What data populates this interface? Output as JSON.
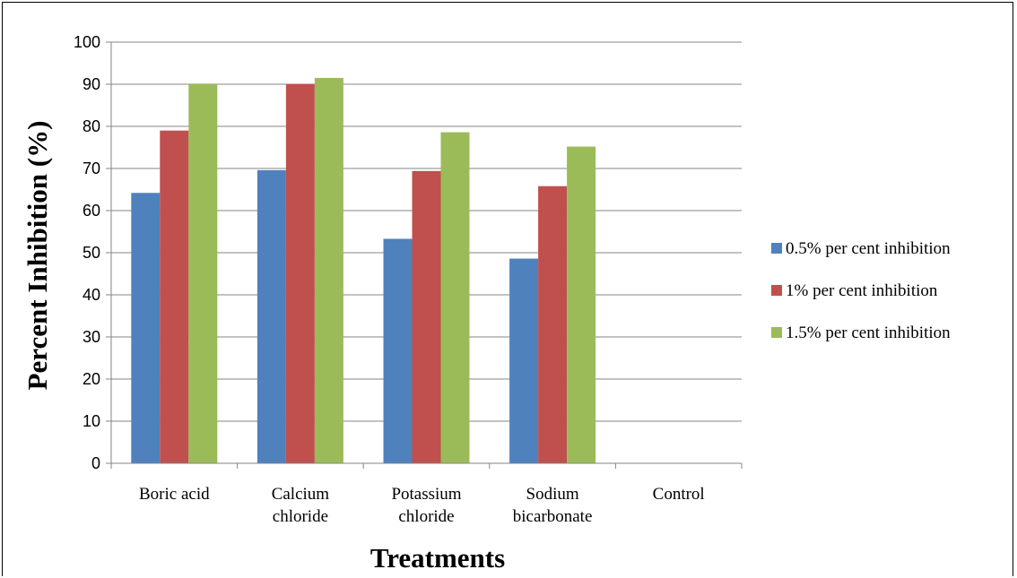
{
  "chart_data": {
    "type": "bar",
    "title": "",
    "xlabel": "Treatments",
    "ylabel": "Percent Inhibition (%)",
    "ylim": [
      0,
      100
    ],
    "yticks": [
      0,
      10,
      20,
      30,
      40,
      50,
      60,
      70,
      80,
      90,
      100
    ],
    "grid": true,
    "legend_position": "right",
    "categories": [
      [
        "Boric acid"
      ],
      [
        "Calcium",
        "chloride"
      ],
      [
        "Potassium",
        "chloride"
      ],
      [
        "Sodium",
        "bicarbonate"
      ],
      [
        "Control"
      ]
    ],
    "series": [
      {
        "name": "0.5% per cent inhibition",
        "color": "#4f81bd",
        "values": [
          64.2,
          69.6,
          53.3,
          48.6,
          0
        ]
      },
      {
        "name": "1% per cent inhibition",
        "color": "#c0504d",
        "values": [
          79.0,
          90.0,
          69.4,
          65.8,
          0
        ]
      },
      {
        "name": "1.5% per cent inhibition",
        "color": "#9bbb59",
        "values": [
          90.0,
          91.5,
          78.6,
          75.2,
          0
        ]
      }
    ]
  }
}
